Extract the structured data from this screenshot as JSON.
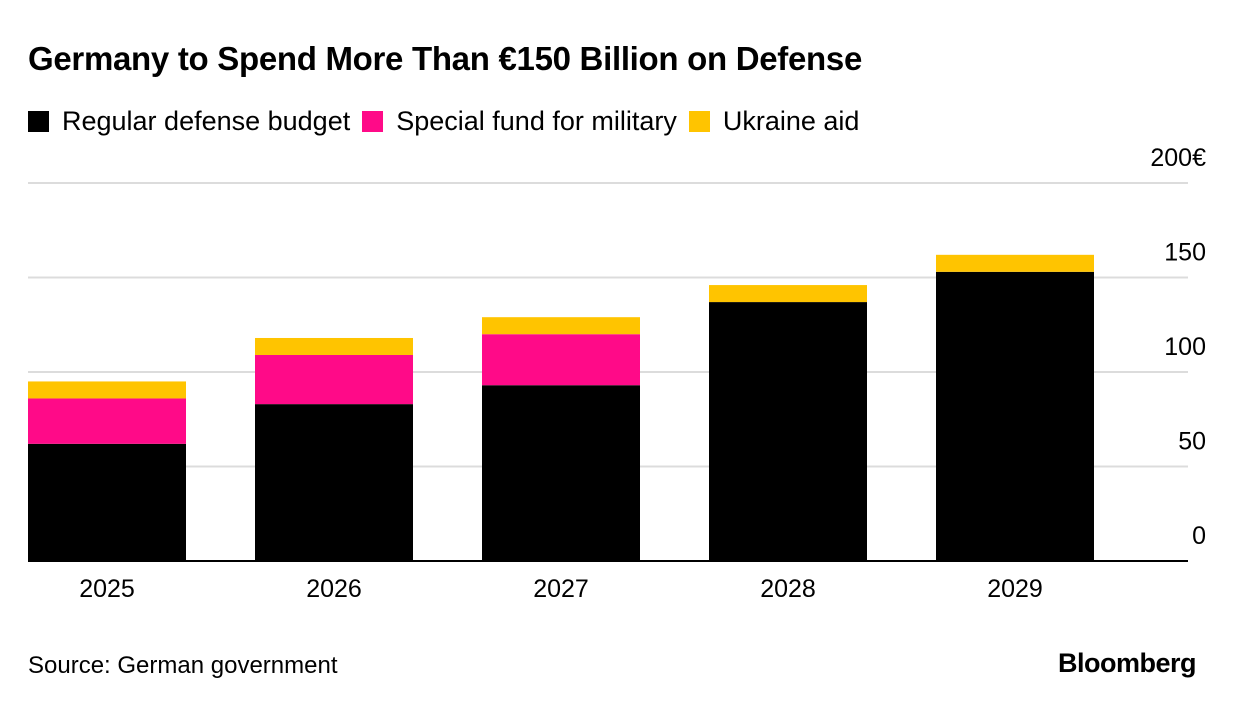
{
  "chart_data": {
    "type": "bar",
    "stacked": true,
    "title": "Germany to Spend More Than €150 Billion on Defense",
    "categories": [
      "2025",
      "2026",
      "2027",
      "2028",
      "2029"
    ],
    "series": [
      {
        "name": "Regular defense budget",
        "color": "#000000",
        "values": [
          62,
          83,
          93,
          137,
          153
        ]
      },
      {
        "name": "Special fund for military",
        "color": "#ff0a88",
        "values": [
          24,
          26,
          27,
          0,
          0
        ]
      },
      {
        "name": "Ukraine aid",
        "color": "#ffc400",
        "values": [
          9,
          9,
          9,
          9,
          9
        ]
      }
    ],
    "y_ticks": [
      {
        "value": 0,
        "label": "0"
      },
      {
        "value": 50,
        "label": "50"
      },
      {
        "value": 100,
        "label": "100"
      },
      {
        "value": 150,
        "label": "150"
      },
      {
        "value": 200,
        "label": "200€"
      }
    ],
    "ylim": [
      0,
      200
    ],
    "grid": true,
    "legend_position": "top-left",
    "y_axis_side": "right"
  },
  "source": "Source: German government",
  "brand": "Bloomberg"
}
